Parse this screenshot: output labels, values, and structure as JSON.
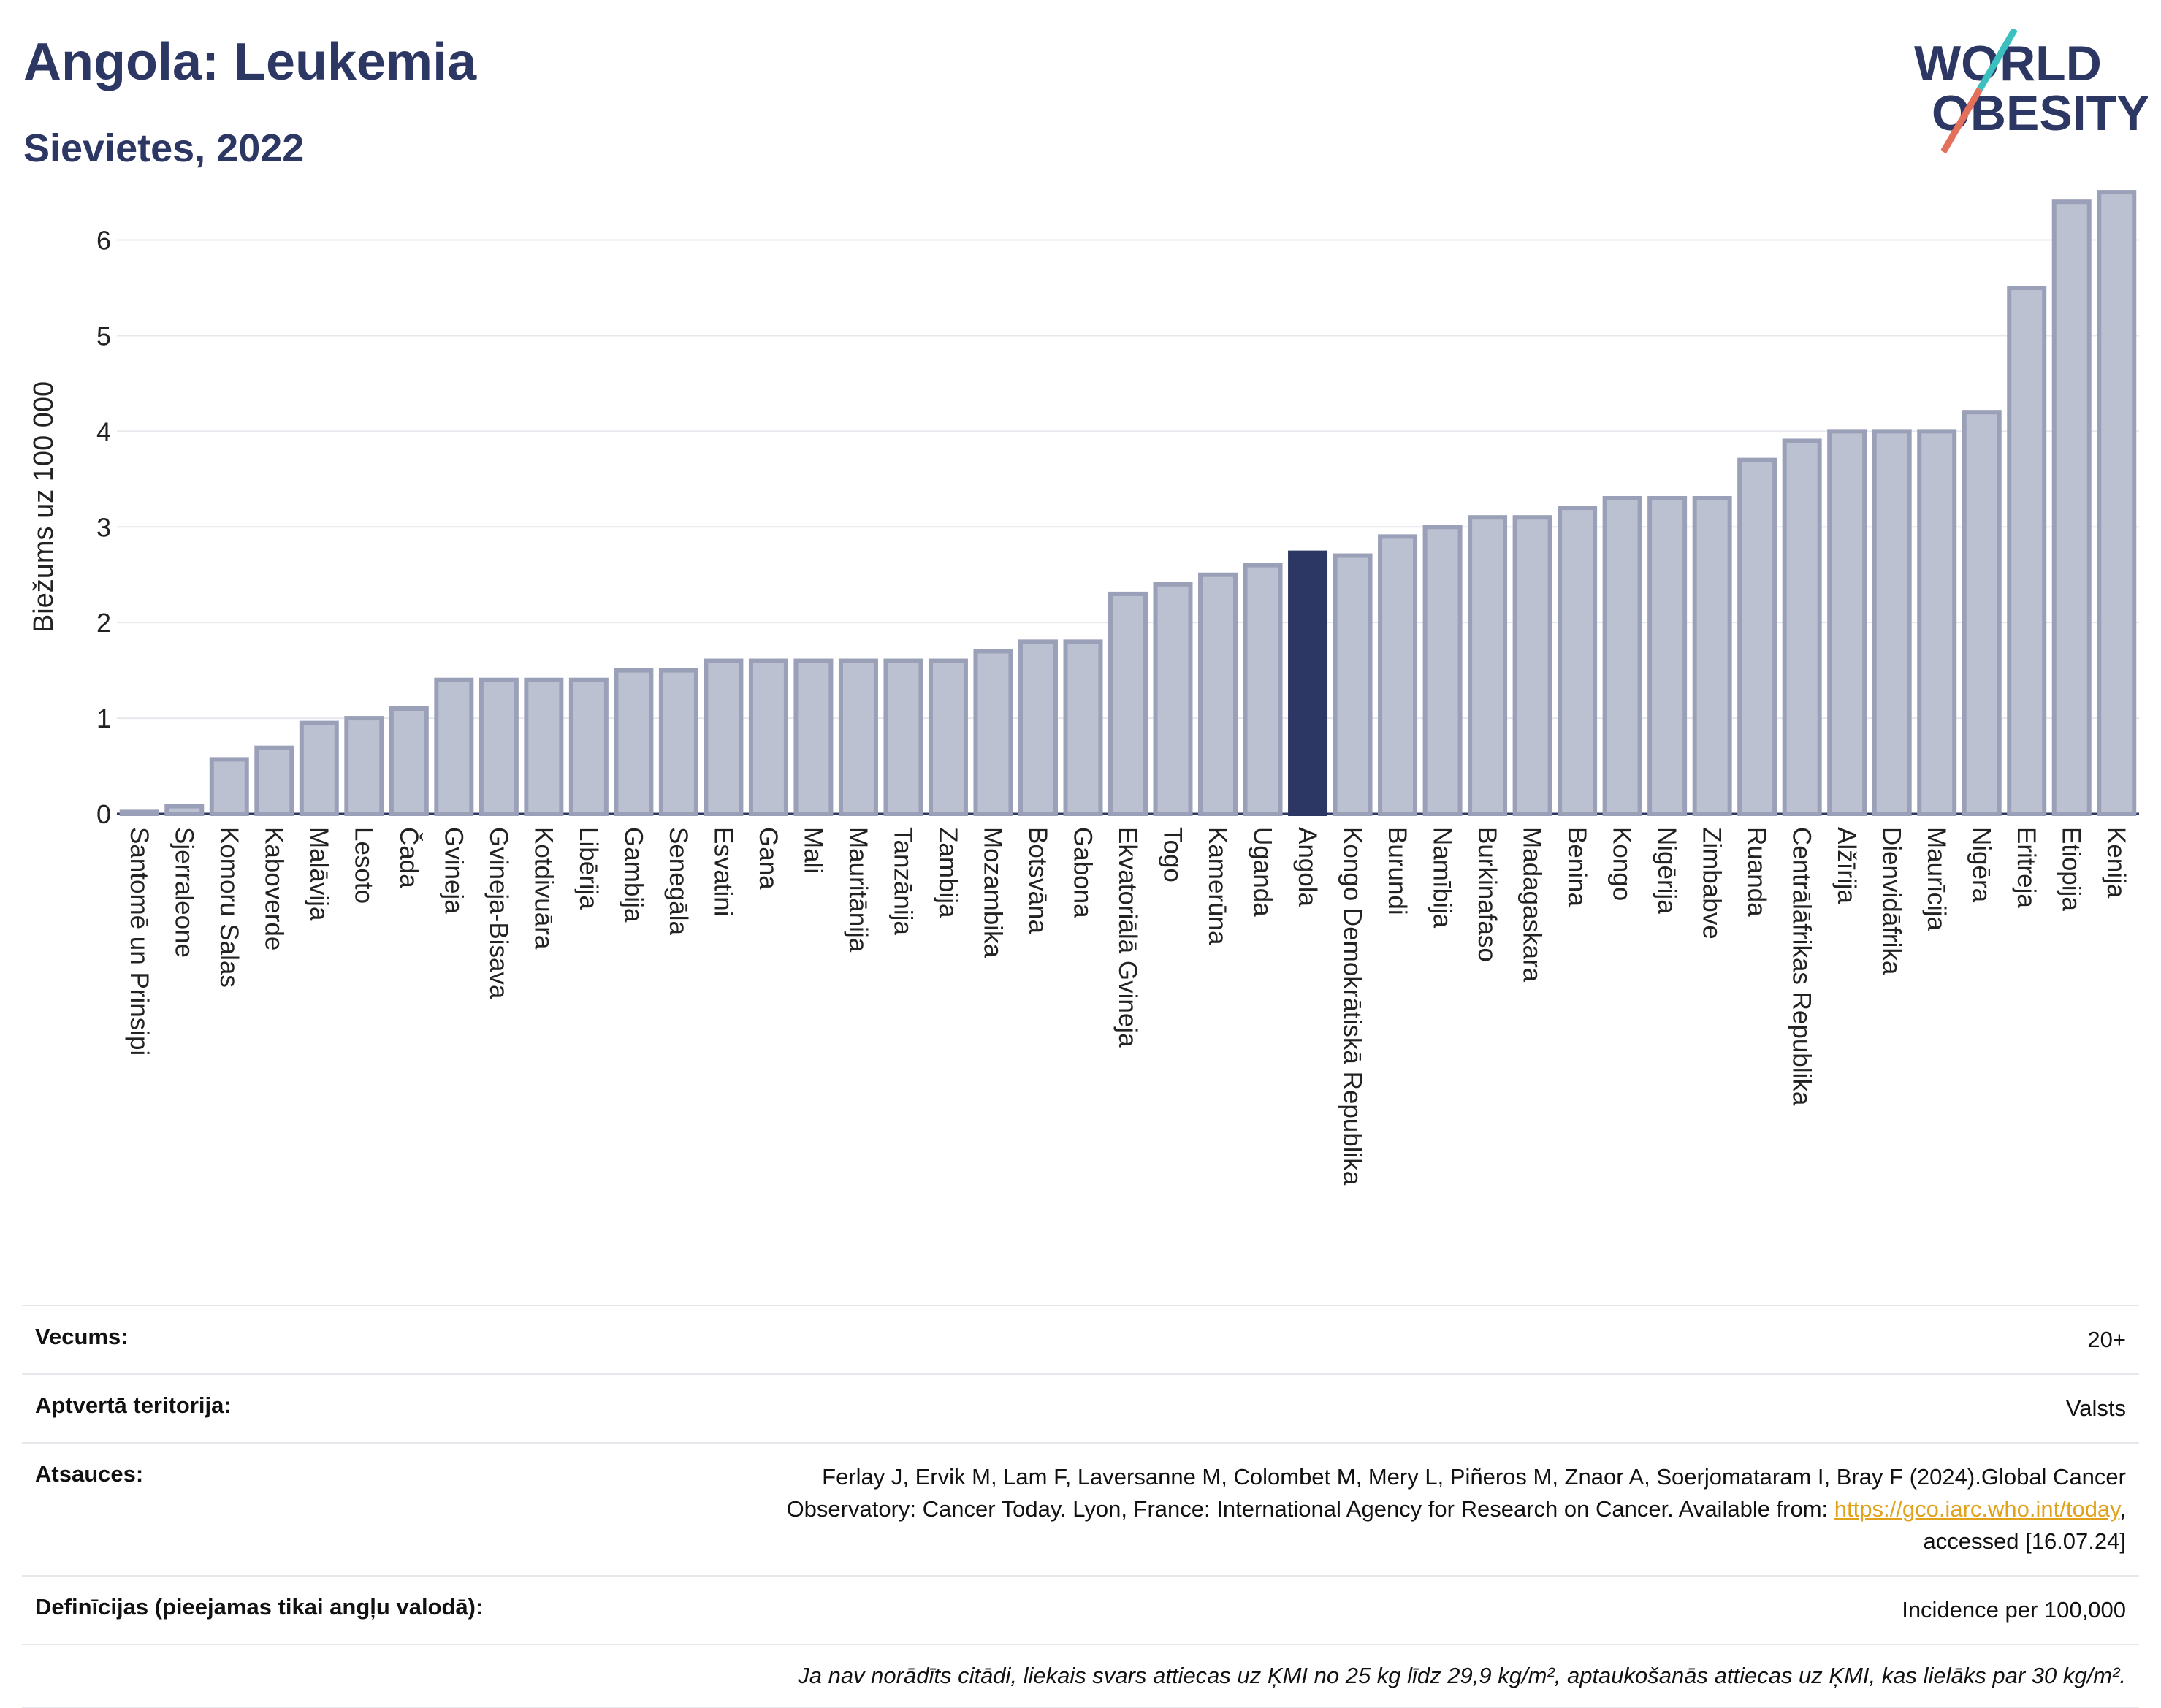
{
  "title": "Angola: Leukemia",
  "subtitle": "Sievietes, 2022",
  "logo": {
    "line1": "WORLD",
    "line2": "OBESITY",
    "accent_teal": "#3cbfbf",
    "accent_red": "#e4705c",
    "color": "#2d3763"
  },
  "chart_data": {
    "type": "bar",
    "ylabel": "Biežums uz 100 000",
    "ylim": [
      0,
      6.6
    ],
    "yticks": [
      0,
      1,
      2,
      3,
      4,
      5,
      6
    ],
    "grid": true,
    "highlight": "Angola",
    "colors": {
      "bar": "#bcc1d1",
      "bar_edge": "#9aa0b8",
      "highlight": "#2d3763"
    },
    "categories": [
      "Santomē un Prinsipi",
      "Sjerraleone",
      "Komoru Salas",
      "Kaboverde",
      "Malāvija",
      "Lesoto",
      "Čada",
      "Gvineja",
      "Gvineja-Bisava",
      "Kotdivuāra",
      "Libērija",
      "Gambija",
      "Senegāla",
      "Esvatini",
      "Gana",
      "Mali",
      "Mauritānija",
      "Tanzānija",
      "Zambija",
      "Mozambika",
      "Botsvāna",
      "Gabona",
      "Ekvatoriālā Gvineja",
      "Togo",
      "Kamerūna",
      "Uganda",
      "Angola",
      "Kongo Demokrātiskā Republika",
      "Burundi",
      "Namībija",
      "Burkinafaso",
      "Madagaskara",
      "Benina",
      "Kongo",
      "Nigērija",
      "Zimbabve",
      "Ruanda",
      "Centrālāfrikas Republika",
      "Alžīrija",
      "Dienvidāfrika",
      "Maurīcija",
      "Nigēra",
      "Eritreja",
      "Etiopija",
      "Kenija"
    ],
    "values": [
      0.02,
      0.08,
      0.57,
      0.69,
      0.95,
      1.0,
      1.1,
      1.4,
      1.4,
      1.4,
      1.4,
      1.5,
      1.5,
      1.6,
      1.6,
      1.6,
      1.6,
      1.6,
      1.6,
      1.7,
      1.8,
      1.8,
      2.3,
      2.4,
      2.5,
      2.6,
      2.73,
      2.7,
      2.9,
      3.0,
      3.1,
      3.1,
      3.2,
      3.3,
      3.3,
      3.3,
      3.7,
      3.9,
      4.0,
      4.0,
      4.0,
      4.2,
      5.5,
      6.4,
      6.5
    ]
  },
  "info": {
    "age": {
      "label": "Vecums:",
      "value": "20+"
    },
    "territory": {
      "label": "Aptvertā teritorija:",
      "value": "Valsts"
    },
    "references": {
      "label": "Atsauces:",
      "text1": "Ferlay J, Ervik M, Lam F, Laversanne M, Colombet M, Mery L, Piñeros M, Znaor A, Soerjomataram I, Bray F (2024).Global Cancer",
      "text2": "Observatory: Cancer Today. Lyon, France: International Agency for Research on Cancer. Available from: ",
      "link": "https://gco.iarc.who.int/today",
      "text3": ",",
      "text4": "accessed [16.07.24]"
    },
    "definitions": {
      "label": "Definīcijas (pieejamas tikai angļu valodā):",
      "value": "Incidence per 100,000"
    },
    "note": "Ja nav norādīts citādi, liekais svars attiecas uz ĶMI no 25 kg līdz 29,9 kg/m², aptaukošanās attiecas uz ĶMI, kas lielāks par 30 kg/m²."
  }
}
